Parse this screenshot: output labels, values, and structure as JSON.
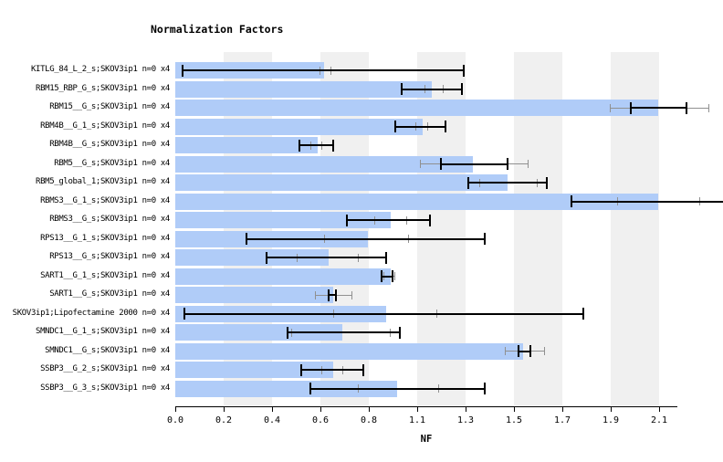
{
  "chart_data": {
    "type": "bar",
    "orientation": "horizontal",
    "title": "Normalization Factors",
    "xlabel": "NF",
    "x_tick_labels": [
      "0.0",
      "0.2",
      "0.4",
      "0.6",
      "0.8",
      "1.1",
      "1.3",
      "1.5",
      "1.7",
      "1.9",
      "2.1"
    ],
    "x_tick_values": [
      0,
      0.2112,
      0.4224,
      0.6336,
      0.8448,
      1.056,
      1.2672,
      1.4784,
      1.6896,
      1.9008,
      2.112
    ],
    "xlim": [
      0,
      2.19
    ],
    "grid": "alternating-vertical-bands",
    "legend": "none",
    "bar_color": "#b0ccf8",
    "band_color": "#f0f0f0",
    "error_bar_color": "#000000",
    "range_marker_color": "#909090",
    "rows": [
      {
        "label": "KITLG_84_L_2_s;SKOV3ip1 n=0 x4",
        "nf": 0.65,
        "err_lo": 0.03,
        "err_hi": 1.26,
        "range_lo": 0.63,
        "range_hi": 0.68
      },
      {
        "label": "RBM15_RBP_G_s;SKOV3ip1 n=0 x4",
        "nf": 1.12,
        "err_lo": 0.99,
        "err_hi": 1.25,
        "range_lo": 1.09,
        "range_hi": 1.17
      },
      {
        "label": "RBM15__G_s;SKOV3ip1 n=0 x4",
        "nf": 2.11,
        "err_lo": 1.99,
        "err_hi": 2.23,
        "range_lo": 1.9,
        "range_hi": 2.33
      },
      {
        "label": "RBM4B__G_1_s;SKOV3ip1 n=0 x4",
        "nf": 1.08,
        "err_lo": 0.96,
        "err_hi": 1.18,
        "range_lo": 1.05,
        "range_hi": 1.1
      },
      {
        "label": "RBM4B__G_s;SKOV3ip1 n=0 x4",
        "nf": 0.62,
        "err_lo": 0.54,
        "err_hi": 0.69,
        "range_lo": 0.59,
        "range_hi": 0.64
      },
      {
        "label": "RBM5__G_s;SKOV3ip1 n=0 x4",
        "nf": 1.3,
        "err_lo": 1.16,
        "err_hi": 1.45,
        "range_lo": 1.07,
        "range_hi": 1.54
      },
      {
        "label": "RBM5_global_1;SKOV3ip1 n=0 x4",
        "nf": 1.45,
        "err_lo": 1.28,
        "err_hi": 1.62,
        "range_lo": 1.33,
        "range_hi": 1.58
      },
      {
        "label": "RBMS3__G_1_s;SKOV3ip1 n=0 x4",
        "nf": 2.11,
        "err_lo": 1.73,
        "err_hi": 2.45,
        "range_lo": 1.93,
        "range_hi": 2.29
      },
      {
        "label": "RBMS3__G_s;SKOV3ip1 n=0 x4",
        "nf": 0.94,
        "err_lo": 0.75,
        "err_hi": 1.11,
        "range_lo": 0.87,
        "range_hi": 1.01
      },
      {
        "label": "RPS13__G_1_s;SKOV3ip1 n=0 x4",
        "nf": 0.84,
        "err_lo": 0.31,
        "err_hi": 1.35,
        "range_lo": 0.65,
        "range_hi": 1.02
      },
      {
        "label": "RPS13__G_s;SKOV3ip1 n=0 x4",
        "nf": 0.67,
        "err_lo": 0.4,
        "err_hi": 0.92,
        "range_lo": 0.53,
        "range_hi": 0.8
      },
      {
        "label": "SART1__G_1_s;SKOV3ip1 n=0 x4",
        "nf": 0.94,
        "err_lo": 0.9,
        "err_hi": 0.95,
        "range_lo": 0.91,
        "range_hi": 0.96
      },
      {
        "label": "SART1__G_s;SKOV3ip1 n=0 x4",
        "nf": 0.69,
        "err_lo": 0.67,
        "err_hi": 0.7,
        "range_lo": 0.61,
        "range_hi": 0.77
      },
      {
        "label": "SKOV3ip1;Lipofectamine 2000 n=0 x4",
        "nf": 0.92,
        "err_lo": 0.04,
        "err_hi": 1.78,
        "range_lo": 0.69,
        "range_hi": 1.14
      },
      {
        "label": "SMNDC1__G_1_s;SKOV3ip1 n=0 x4",
        "nf": 0.73,
        "err_lo": 0.49,
        "err_hi": 0.98,
        "range_lo": 0.51,
        "range_hi": 0.94
      },
      {
        "label": "SMNDC1__G_s;SKOV3ip1 n=0 x4",
        "nf": 1.52,
        "err_lo": 1.5,
        "err_hi": 1.55,
        "range_lo": 1.44,
        "range_hi": 1.61
      },
      {
        "label": "SSBP3__G_2_s;SKOV3ip1 n=0 x4",
        "nf": 0.69,
        "err_lo": 0.55,
        "err_hi": 0.82,
        "range_lo": 0.64,
        "range_hi": 0.73
      },
      {
        "label": "SSBP3__G_3_s;SKOV3ip1 n=0 x4",
        "nf": 0.97,
        "err_lo": 0.59,
        "err_hi": 1.35,
        "range_lo": 0.8,
        "range_hi": 1.15
      }
    ]
  }
}
